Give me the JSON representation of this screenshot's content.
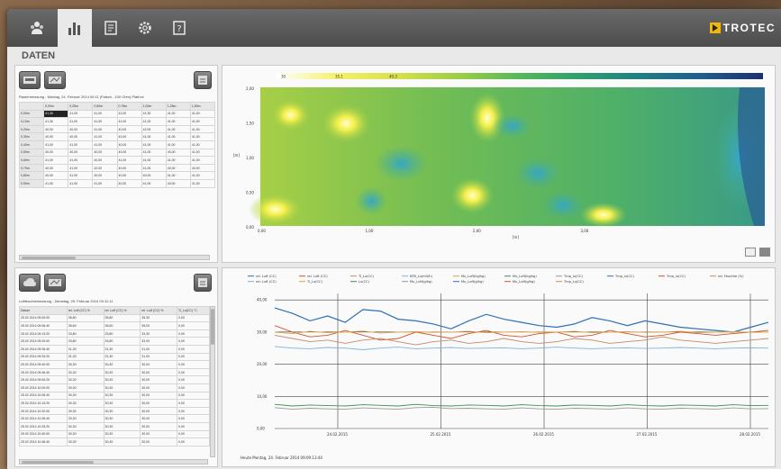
{
  "brand": "TROTEC",
  "section_title": "DATEN",
  "nav": [
    {
      "icon": "users-icon"
    },
    {
      "icon": "bar-chart-icon",
      "active": true
    },
    {
      "icon": "document-icon"
    },
    {
      "icon": "gear-icon"
    },
    {
      "icon": "help-icon"
    }
  ],
  "grid_table": {
    "caption": "Rastermessung - Montag, 24. Februar 2014 00:11 (Falsch - 100 Ohm) Platt.txt",
    "columns": [
      "",
      "0,00m",
      "0,25m",
      "0,50m",
      "0,75m",
      "1,00m",
      "1,25m",
      "1,50m"
    ],
    "rows": [
      [
        "0,00m",
        "41,30",
        "41,00",
        "41,00",
        "42,00",
        "41,30",
        "41,00",
        "41,00"
      ],
      [
        "0,10m",
        "41,30",
        "41,00",
        "41,00",
        "42,00",
        "41,00",
        "41,00",
        "41,00"
      ],
      [
        "0,20m",
        "40,00",
        "40,00",
        "41,00",
        "40,00",
        "42,00",
        "41,00",
        "41,00"
      ],
      [
        "0,30m",
        "40,00",
        "40,00",
        "41,00",
        "40,00",
        "41,00",
        "41,00",
        "41,00"
      ],
      [
        "0,40m",
        "41,00",
        "41,00",
        "41,00",
        "40,00",
        "41,00",
        "41,00",
        "41,00"
      ],
      [
        "0,50m",
        "40,00",
        "40,00",
        "40,00",
        "40,00",
        "41,00",
        "40,00",
        "41,00"
      ],
      [
        "0,60m",
        "41,00",
        "41,00",
        "40,00",
        "41,00",
        "41,00",
        "41,00",
        "41,00"
      ],
      [
        "0,70m",
        "40,00",
        "41,00",
        "42,00",
        "40,00",
        "41,00",
        "40,00",
        "40,00"
      ],
      [
        "0,80m",
        "40,00",
        "41,00",
        "40,00",
        "40,00",
        "40,00",
        "41,00",
        "41,00"
      ],
      [
        "0,90m",
        "41,00",
        "41,00",
        "41,00",
        "40,00",
        "41,00",
        "40,00",
        "41,00"
      ]
    ]
  },
  "log_table": {
    "caption": "Luftfeuchtemessung - Dienstag, 25. Februar 2014 09:11:11",
    "columns": [
      "Datum",
      "rel. Luft (CC) %",
      "rel. Luft (CC) %",
      "rel. Luft (CC) %",
      "Ti_Lu(CC) °C"
    ],
    "rows": [
      [
        "25.02.2014 09:00:00",
        "35,80",
        "35,80",
        "35,30",
        "0,00"
      ],
      [
        "25.02.2014 09:06:40",
        "35,60",
        "35,60",
        "35,00",
        "0,00"
      ],
      [
        "25.02.2014 09:13:20",
        "33,80",
        "33,80",
        "33,30",
        "0,00"
      ],
      [
        "25.02.2014 09:20:00",
        "33,80",
        "33,80",
        "33,00",
        "0,00"
      ],
      [
        "25.02.2014 09:26:40",
        "31,30",
        "31,30",
        "31,00",
        "0,00"
      ],
      [
        "25.02.2014 09:33:20",
        "31,30",
        "31,30",
        "31,00",
        "0,00"
      ],
      [
        "25.02.2014 09:40:00",
        "30,30",
        "30,30",
        "30,00",
        "0,00"
      ],
      [
        "25.02.2014 09:46:40",
        "30,30",
        "30,30",
        "30,00",
        "0,00"
      ],
      [
        "25.02.2014 09:53:20",
        "30,30",
        "30,30",
        "30,00",
        "0,00"
      ],
      [
        "25.02.2014 10:00:00",
        "30,30",
        "30,30",
        "30,00",
        "0,00"
      ],
      [
        "25.02.2014 10:06:40",
        "30,30",
        "30,30",
        "30,00",
        "0,00"
      ],
      [
        "25.02.2014 10:13:20",
        "30,30",
        "30,30",
        "30,00",
        "0,00"
      ],
      [
        "25.02.2014 10:20:00",
        "30,30",
        "30,30",
        "30,00",
        "0,00"
      ],
      [
        "25.02.2014 10:26:40",
        "30,30",
        "30,30",
        "30,00",
        "0,00"
      ],
      [
        "25.02.2014 10:33:20",
        "30,30",
        "30,30",
        "30,00",
        "0,00"
      ],
      [
        "25.02.2014 10:40:00",
        "30,30",
        "30,30",
        "30,00",
        "0,00"
      ],
      [
        "25.02.2014 10:46:40",
        "30,30",
        "30,30",
        "30,00",
        "0,00"
      ]
    ]
  },
  "heatmap": {
    "colorbar_labels": [
      "30",
      "35,1",
      "40,3"
    ],
    "y_tick_labels": [
      "2,00",
      "1,50",
      "1,00",
      "0,50",
      "0,00"
    ],
    "x_tick_labels": [
      "0,00",
      "1,00",
      "2,00",
      "3,00"
    ],
    "x_label": "[m]",
    "y_label": "[m]"
  },
  "chart_data": {
    "type": "line",
    "y_ticks": [
      "40,00",
      "30,00",
      "20,00",
      "10,00",
      "0,00"
    ],
    "ylim": [
      0,
      42
    ],
    "x_ticks": [
      "24.02.2015",
      "25.02.2015",
      "26.02.2015",
      "27.02.2015",
      "28.02.2015"
    ],
    "legend": [
      "rel. Luft (CC)",
      "rel. Luft (CC)",
      "Ti_Lu(CC)",
      "KFB_Lu(m3/h)",
      "Mu_Luft(kg/kg)",
      "Mu_Luft(kg/kg)",
      "Tmp_lu(CC)",
      "Tmp_lu(CC)",
      "Tmp_lu(CC)",
      "rel. Feuchte (%)",
      "rel. Luft (CC)",
      "Ti_Lu(CC)",
      "Lu(CC)",
      "Mu_Luft(g/kg)",
      "Mu_Luft(g/kg)",
      "Mu_Luft(g/kg)",
      "Tmp_Lu(CC)"
    ],
    "colors": [
      "#2e6fb5",
      "#d2532a",
      "#c28a6a",
      "#7db3d8",
      "#d9a441",
      "#3f8f5a",
      "#999999"
    ],
    "series": [
      {
        "values": [
          37.5,
          35.8,
          33.5,
          35.0,
          33.0,
          37.0,
          36.5,
          34.0,
          33.5,
          32.5,
          31.0,
          33.5,
          35.5,
          34.0,
          33.0,
          32.0,
          31.5,
          32.5,
          34.5,
          33.5,
          32.0,
          33.5,
          32.5,
          31.5,
          31.0,
          30.5,
          30.0,
          31.5,
          33.0
        ]
      },
      {
        "values": [
          32.0,
          30.0,
          28.5,
          29.0,
          30.5,
          29.0,
          27.5,
          28.0,
          30.0,
          29.0,
          28.0,
          29.5,
          30.5,
          29.0,
          28.5,
          29.5,
          30.0,
          28.5,
          29.0,
          30.5,
          29.5,
          28.5,
          29.0,
          30.0,
          29.5,
          29.0,
          29.5,
          30.0,
          30.5
        ]
      },
      {
        "values": [
          29.0,
          28.0,
          27.0,
          27.5,
          26.5,
          27.5,
          28.0,
          27.0,
          26.0,
          27.0,
          27.5,
          26.5,
          27.0,
          28.0,
          27.0,
          26.5,
          27.0,
          28.0,
          27.5,
          26.5,
          27.0,
          27.5,
          28.5,
          27.5,
          27.0,
          26.5,
          27.0,
          27.5,
          28.0
        ]
      },
      {
        "values": [
          25.5,
          25.0,
          24.8,
          25.2,
          25.0,
          24.5,
          25.0,
          25.3,
          24.8,
          25.0,
          25.2,
          24.9,
          25.0,
          25.1,
          24.8,
          25.0,
          25.3,
          25.0,
          24.8,
          25.0,
          25.1,
          24.9,
          25.0,
          25.2,
          25.0,
          24.8,
          25.0,
          25.1,
          25.0
        ]
      },
      {
        "values": [
          30.0,
          29.5,
          30.2,
          29.8,
          30.0,
          30.3,
          29.7,
          30.0,
          30.1,
          29.9,
          30.0,
          30.2,
          29.8,
          30.0,
          30.1,
          29.9,
          30.0,
          30.2,
          29.8,
          30.0,
          30.1,
          29.9,
          30.0,
          30.2,
          29.8,
          30.0,
          30.1,
          29.9,
          30.0
        ]
      },
      {
        "values": [
          7.5,
          7.0,
          7.3,
          7.1,
          7.0,
          7.4,
          7.2,
          7.0,
          7.5,
          7.1,
          7.0,
          7.3,
          7.2,
          7.0,
          7.4,
          7.1,
          7.0,
          7.3,
          7.2,
          7.0,
          7.4,
          7.1,
          7.0,
          7.3,
          7.2,
          7.0,
          7.4,
          7.1,
          7.2
        ]
      },
      {
        "values": [
          6.5,
          6.0,
          6.3,
          6.1,
          6.0,
          6.4,
          6.2,
          6.0,
          6.5,
          6.6,
          6.2,
          6.3,
          6.1,
          6.0,
          6.4,
          6.1,
          6.0,
          6.3,
          6.2,
          6.0,
          6.4,
          6.1,
          6.0,
          6.3,
          6.2,
          6.0,
          6.4,
          6.1,
          6.2
        ]
      }
    ],
    "footer": "Heute Montag, 24. Februar 2014 09:09:13:44"
  }
}
